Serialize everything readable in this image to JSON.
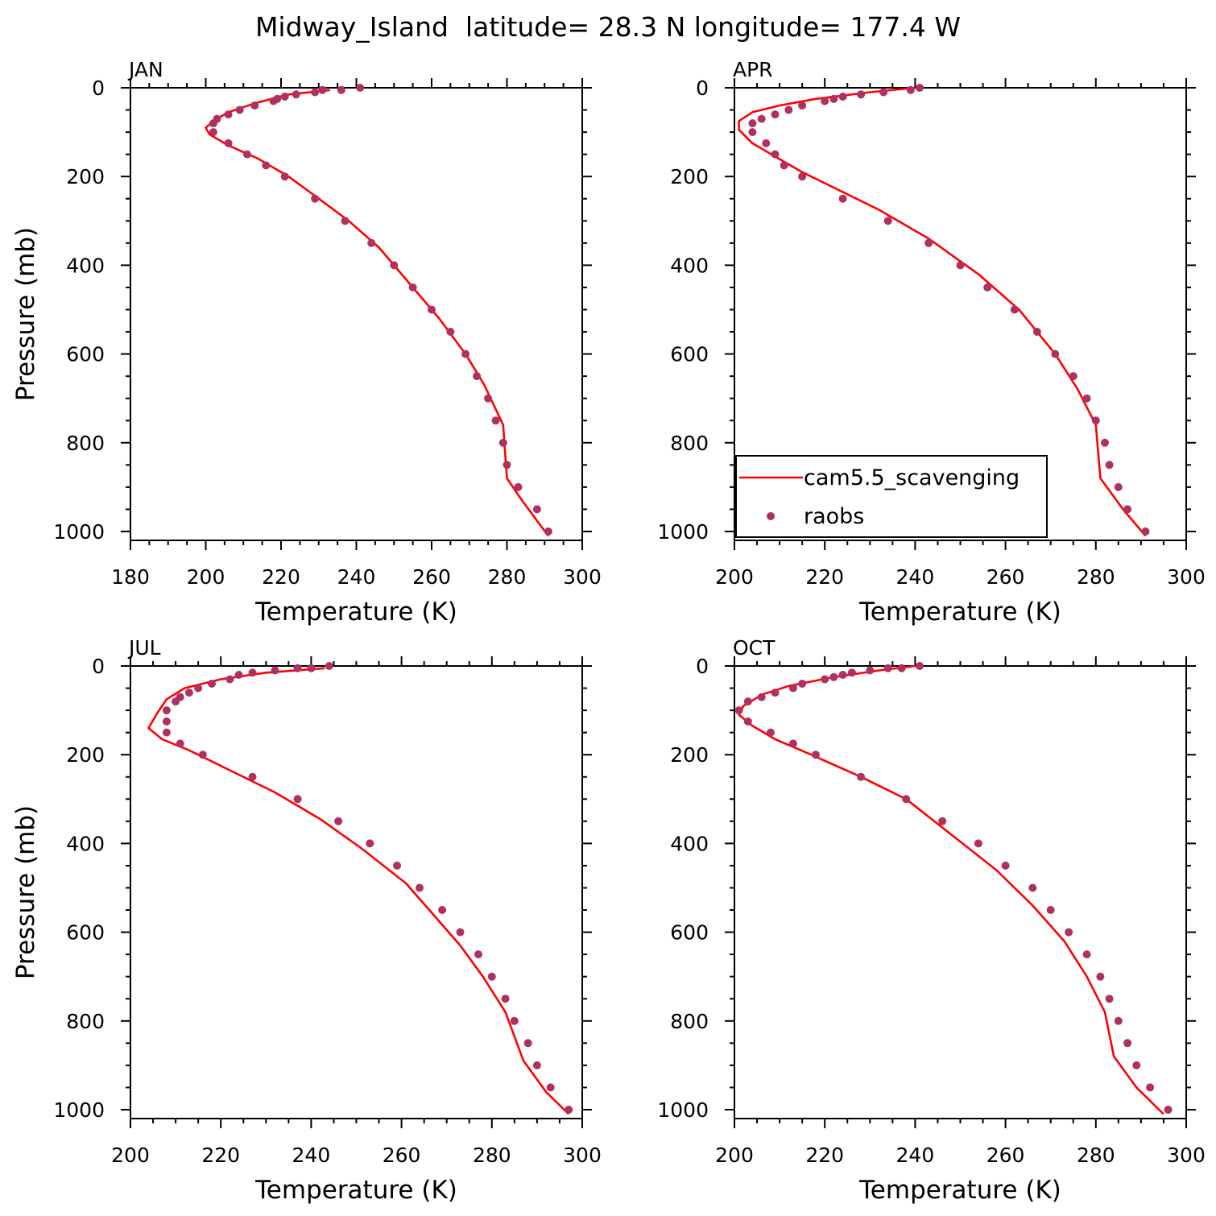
{
  "figure": {
    "title": "Midway_Island  latitude= 28.3 N longitude= 177.4 W"
  },
  "colors": {
    "model_line": "#ff0000",
    "obs_marker": "#b03060",
    "axes": "#000000"
  },
  "legend": {
    "placement": "bottom-left of APR panel",
    "entries": [
      {
        "label": "cam5.5_scavenging",
        "style": "line",
        "color": "#ff0000"
      },
      {
        "label": "raobs",
        "style": "marker",
        "color": "#b03060"
      }
    ]
  },
  "chart_data": [
    {
      "type": "line",
      "panel_label": "JAN",
      "xlabel": "Temperature (K)",
      "ylabel": "Pressure (mb)",
      "xlim": [
        180,
        300
      ],
      "ylim": [
        1020,
        0
      ],
      "y_inverted": true,
      "xticks": [
        180,
        200,
        220,
        240,
        260,
        280,
        300
      ],
      "yticks": [
        0,
        200,
        400,
        600,
        800,
        1000
      ],
      "series": [
        {
          "name": "cam5.5_scavenging",
          "kind": "line",
          "points": [
            [
              233,
              5
            ],
            [
              222,
              15
            ],
            [
              213,
              35
            ],
            [
              206,
              55
            ],
            [
              202,
              75
            ],
            [
              200,
              90
            ],
            [
              201,
              105
            ],
            [
              206,
              130
            ],
            [
              214,
              160
            ],
            [
              222,
              200
            ],
            [
              230,
              250
            ],
            [
              238,
              300
            ],
            [
              246,
              360
            ],
            [
              253,
              430
            ],
            [
              262,
              520
            ],
            [
              269,
              600
            ],
            [
              274,
              670
            ],
            [
              279,
              760
            ],
            [
              280,
              880
            ],
            [
              284,
              930
            ],
            [
              291,
              1010
            ]
          ]
        },
        {
          "name": "raobs",
          "kind": "scatter",
          "points": [
            [
              241,
              0
            ],
            [
              236,
              5
            ],
            [
              231,
              5
            ],
            [
              229,
              10
            ],
            [
              224,
              15
            ],
            [
              221,
              20
            ],
            [
              219,
              25
            ],
            [
              218,
              30
            ],
            [
              213,
              40
            ],
            [
              209,
              50
            ],
            [
              206,
              60
            ],
            [
              203,
              70
            ],
            [
              202,
              80
            ],
            [
              202,
              100
            ],
            [
              206,
              125
            ],
            [
              211,
              150
            ],
            [
              216,
              175
            ],
            [
              221,
              200
            ],
            [
              229,
              250
            ],
            [
              237,
              300
            ],
            [
              244,
              350
            ],
            [
              250,
              400
            ],
            [
              255,
              450
            ],
            [
              260,
              500
            ],
            [
              265,
              550
            ],
            [
              269,
              600
            ],
            [
              272,
              650
            ],
            [
              275,
              700
            ],
            [
              277,
              750
            ],
            [
              279,
              800
            ],
            [
              280,
              850
            ],
            [
              283,
              900
            ],
            [
              288,
              950
            ],
            [
              291,
              1000
            ]
          ]
        }
      ]
    },
    {
      "type": "line",
      "panel_label": "APR",
      "xlabel": "Temperature (K)",
      "ylabel": "",
      "xlim": [
        200,
        300
      ],
      "ylim": [
        1020,
        0
      ],
      "y_inverted": true,
      "xticks": [
        200,
        220,
        240,
        260,
        280,
        300
      ],
      "yticks": [
        0,
        200,
        400,
        600,
        800,
        1000
      ],
      "series": [
        {
          "name": "cam5.5_scavenging",
          "kind": "line",
          "points": [
            [
              240,
              0
            ],
            [
              230,
              10
            ],
            [
              218,
              25
            ],
            [
              210,
              40
            ],
            [
              204,
              55
            ],
            [
              201,
              75
            ],
            [
              201,
              95
            ],
            [
              204,
              125
            ],
            [
              209,
              155
            ],
            [
              215,
              190
            ],
            [
              222,
              225
            ],
            [
              232,
              275
            ],
            [
              243,
              340
            ],
            [
              254,
              420
            ],
            [
              263,
              500
            ],
            [
              271,
              600
            ],
            [
              276,
              680
            ],
            [
              280,
              760
            ],
            [
              281,
              880
            ],
            [
              286,
              950
            ],
            [
              291,
              1010
            ]
          ]
        },
        {
          "name": "raobs",
          "kind": "scatter",
          "points": [
            [
              241,
              0
            ],
            [
              239,
              5
            ],
            [
              233,
              10
            ],
            [
              228,
              15
            ],
            [
              224,
              20
            ],
            [
              222,
              25
            ],
            [
              220,
              30
            ],
            [
              215,
              40
            ],
            [
              212,
              50
            ],
            [
              209,
              60
            ],
            [
              206,
              70
            ],
            [
              204,
              80
            ],
            [
              204,
              100
            ],
            [
              207,
              125
            ],
            [
              209,
              150
            ],
            [
              211,
              175
            ],
            [
              215,
              200
            ],
            [
              224,
              250
            ],
            [
              234,
              300
            ],
            [
              243,
              350
            ],
            [
              250,
              400
            ],
            [
              256,
              450
            ],
            [
              262,
              500
            ],
            [
              267,
              550
            ],
            [
              271,
              600
            ],
            [
              275,
              650
            ],
            [
              278,
              700
            ],
            [
              280,
              750
            ],
            [
              282,
              800
            ],
            [
              283,
              850
            ],
            [
              285,
              900
            ],
            [
              287,
              950
            ],
            [
              291,
              1000
            ]
          ]
        }
      ]
    },
    {
      "type": "line",
      "panel_label": "JUL",
      "xlabel": "Temperature (K)",
      "ylabel": "Pressure (mb)",
      "xlim": [
        200,
        300
      ],
      "ylim": [
        1020,
        0
      ],
      "y_inverted": true,
      "xticks": [
        200,
        220,
        240,
        260,
        280,
        300
      ],
      "yticks": [
        0,
        200,
        400,
        600,
        800,
        1000
      ],
      "series": [
        {
          "name": "cam5.5_scavenging",
          "kind": "line",
          "points": [
            [
              243,
              5
            ],
            [
              230,
              15
            ],
            [
              220,
              30
            ],
            [
              212,
              50
            ],
            [
              208,
              75
            ],
            [
              206,
              105
            ],
            [
              204,
              140
            ],
            [
              207,
              165
            ],
            [
              213,
              190
            ],
            [
              222,
              235
            ],
            [
              232,
              285
            ],
            [
              242,
              345
            ],
            [
              251,
              410
            ],
            [
              261,
              490
            ],
            [
              267,
              560
            ],
            [
              273,
              630
            ],
            [
              278,
              700
            ],
            [
              283,
              780
            ],
            [
              287,
              890
            ],
            [
              292,
              960
            ],
            [
              297,
              1010
            ]
          ]
        },
        {
          "name": "raobs",
          "kind": "scatter",
          "points": [
            [
              244,
              0
            ],
            [
              240,
              5
            ],
            [
              237,
              5
            ],
            [
              232,
              10
            ],
            [
              227,
              15
            ],
            [
              224,
              20
            ],
            [
              222,
              30
            ],
            [
              218,
              40
            ],
            [
              215,
              50
            ],
            [
              213,
              60
            ],
            [
              211,
              70
            ],
            [
              210,
              80
            ],
            [
              208,
              100
            ],
            [
              208,
              125
            ],
            [
              208,
              150
            ],
            [
              211,
              175
            ],
            [
              216,
              200
            ],
            [
              227,
              250
            ],
            [
              237,
              300
            ],
            [
              246,
              350
            ],
            [
              253,
              400
            ],
            [
              259,
              450
            ],
            [
              264,
              500
            ],
            [
              269,
              550
            ],
            [
              273,
              600
            ],
            [
              277,
              650
            ],
            [
              280,
              700
            ],
            [
              283,
              750
            ],
            [
              285,
              800
            ],
            [
              288,
              850
            ],
            [
              290,
              900
            ],
            [
              293,
              950
            ],
            [
              297,
              1000
            ]
          ]
        }
      ]
    },
    {
      "type": "line",
      "panel_label": "OCT",
      "xlabel": "Temperature (K)",
      "ylabel": "",
      "xlim": [
        200,
        300
      ],
      "ylim": [
        1020,
        0
      ],
      "y_inverted": true,
      "xticks": [
        200,
        220,
        240,
        260,
        280,
        300
      ],
      "yticks": [
        0,
        200,
        400,
        600,
        800,
        1000
      ],
      "series": [
        {
          "name": "cam5.5_scavenging",
          "kind": "line",
          "points": [
            [
              240,
              0
            ],
            [
              232,
              10
            ],
            [
              222,
              25
            ],
            [
              212,
              45
            ],
            [
              206,
              65
            ],
            [
              202,
              90
            ],
            [
              201,
              110
            ],
            [
              204,
              135
            ],
            [
              209,
              165
            ],
            [
              217,
              200
            ],
            [
              228,
              250
            ],
            [
              238,
              300
            ],
            [
              248,
              380
            ],
            [
              258,
              460
            ],
            [
              266,
              540
            ],
            [
              273,
              620
            ],
            [
              278,
              700
            ],
            [
              282,
              780
            ],
            [
              284,
              880
            ],
            [
              289,
              950
            ],
            [
              295,
              1010
            ]
          ]
        },
        {
          "name": "raobs",
          "kind": "scatter",
          "points": [
            [
              241,
              0
            ],
            [
              237,
              5
            ],
            [
              234,
              5
            ],
            [
              230,
              10
            ],
            [
              226,
              15
            ],
            [
              224,
              20
            ],
            [
              222,
              25
            ],
            [
              220,
              30
            ],
            [
              215,
              40
            ],
            [
              213,
              50
            ],
            [
              209,
              60
            ],
            [
              206,
              70
            ],
            [
              203,
              80
            ],
            [
              201,
              100
            ],
            [
              203,
              125
            ],
            [
              208,
              150
            ],
            [
              213,
              175
            ],
            [
              218,
              200
            ],
            [
              228,
              250
            ],
            [
              238,
              300
            ],
            [
              246,
              350
            ],
            [
              254,
              400
            ],
            [
              260,
              450
            ],
            [
              266,
              500
            ],
            [
              270,
              550
            ],
            [
              274,
              600
            ],
            [
              278,
              650
            ],
            [
              281,
              700
            ],
            [
              283,
              750
            ],
            [
              285,
              800
            ],
            [
              287,
              850
            ],
            [
              289,
              900
            ],
            [
              292,
              950
            ],
            [
              296,
              1000
            ]
          ]
        }
      ]
    }
  ]
}
